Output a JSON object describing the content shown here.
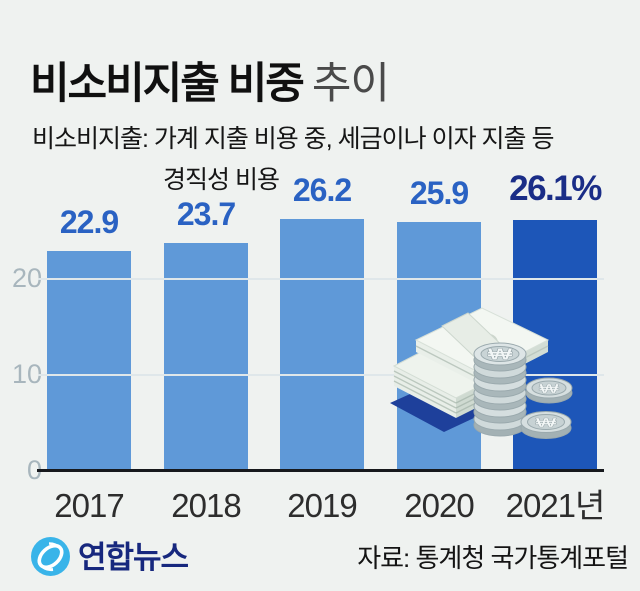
{
  "header": {
    "title_bold": "비소비지출 비중",
    "title_light": "추이",
    "subtitle_line1": "비소비지출: 가계 지출 비용 중, 세금이나 이자 지출 등",
    "subtitle_line2": "경직성 비용"
  },
  "chart_data": {
    "type": "bar",
    "title": "비소비지출 비중 추이",
    "categories": [
      "2017",
      "2018",
      "2019",
      "2020",
      "2021년"
    ],
    "values": [
      22.9,
      23.7,
      26.2,
      25.9,
      26.1
    ],
    "value_labels": [
      "22.9",
      "23.7",
      "26.2",
      "25.9",
      "26.1%"
    ],
    "unit": "%",
    "highlight_index": 4,
    "yticks": [
      0,
      10,
      20
    ],
    "ylim": [
      0,
      27
    ],
    "grid": true,
    "legend": false,
    "xlabel": "",
    "ylabel": ""
  },
  "icons": {
    "won_symbol": "₩"
  },
  "colors": {
    "background": "#eff2f0",
    "bar": "#5f99d8",
    "bar_highlight": "#1d56b8",
    "value_label": "#2a62c3",
    "value_label_highlight": "#1a2d87",
    "axis": "#17191d",
    "gridline": "#dfe7ea",
    "ytick": "#a8b6bd",
    "xtick": "#2d2d2d",
    "logo_blue": "#39b4e9",
    "logo_text": "#17287e"
  },
  "footer": {
    "logo_text": "연합뉴스",
    "source": "자료: 통계청 국가통계포털"
  }
}
